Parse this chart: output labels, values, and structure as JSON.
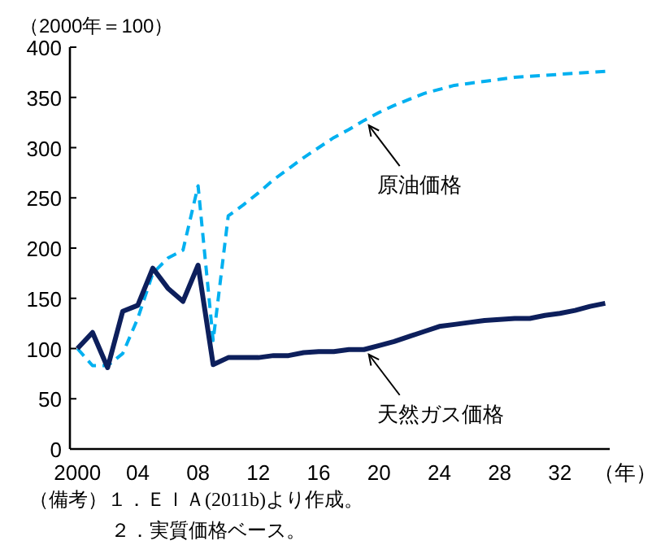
{
  "chart_data": {
    "type": "line",
    "ylabel": "（2000年＝100）",
    "xlabel": "（年）",
    "x": [
      2000,
      2001,
      2002,
      2003,
      2004,
      2005,
      2006,
      2007,
      2008,
      2009,
      2010,
      2011,
      2012,
      2013,
      2014,
      2015,
      2016,
      2017,
      2018,
      2019,
      2020,
      2021,
      2022,
      2023,
      2024,
      2025,
      2026,
      2027,
      2028,
      2029,
      2030,
      2031,
      2032,
      2033,
      2034,
      2035
    ],
    "series": [
      {
        "color": "#00b0f0",
        "line_style": "dashed",
        "values": [
          100,
          83,
          83,
          95,
          130,
          175,
          190,
          198,
          262,
          108,
          232,
          243,
          255,
          268,
          279,
          290,
          300,
          310,
          318,
          327,
          335,
          342,
          348,
          354,
          358,
          362,
          364,
          366,
          368,
          370,
          371,
          372,
          373,
          374,
          375,
          376
        ]
      },
      {
        "color": "#0d1f5c",
        "line_style": "solid",
        "values": [
          100,
          116,
          81,
          137,
          143,
          180,
          160,
          147,
          183,
          84,
          91,
          91,
          91,
          93,
          93,
          96,
          97,
          97,
          99,
          99,
          103,
          107,
          112,
          117,
          122,
          124,
          126,
          128,
          129,
          130,
          130,
          133,
          135,
          138,
          142,
          145
        ]
      }
    ],
    "xlim": [
      1999.5,
      2035.3
    ],
    "ylim": [
      0,
      400
    ],
    "xticks": [
      {
        "value": 2000,
        "label": "2000"
      },
      {
        "value": 2004,
        "label": "04"
      },
      {
        "value": 2008,
        "label": "08"
      },
      {
        "value": 2012,
        "label": "12"
      },
      {
        "value": 2016,
        "label": "16"
      },
      {
        "value": 2020,
        "label": "20"
      },
      {
        "value": 2024,
        "label": "24"
      },
      {
        "value": 2028,
        "label": "28"
      },
      {
        "value": 2032,
        "label": "32"
      }
    ],
    "yticks": [
      0,
      50,
      100,
      150,
      200,
      250,
      300,
      350,
      400
    ],
    "grid": false,
    "marker": "none",
    "annotations": [
      {
        "text": "原油価格",
        "x": 2019,
        "y": 327
      },
      {
        "text": "天然ガス価格",
        "x": 2019,
        "y": 99
      },
      "（備考）１．ＥＩＡ(2011b)より作成。",
      "２．実質価格ベース。"
    ]
  }
}
